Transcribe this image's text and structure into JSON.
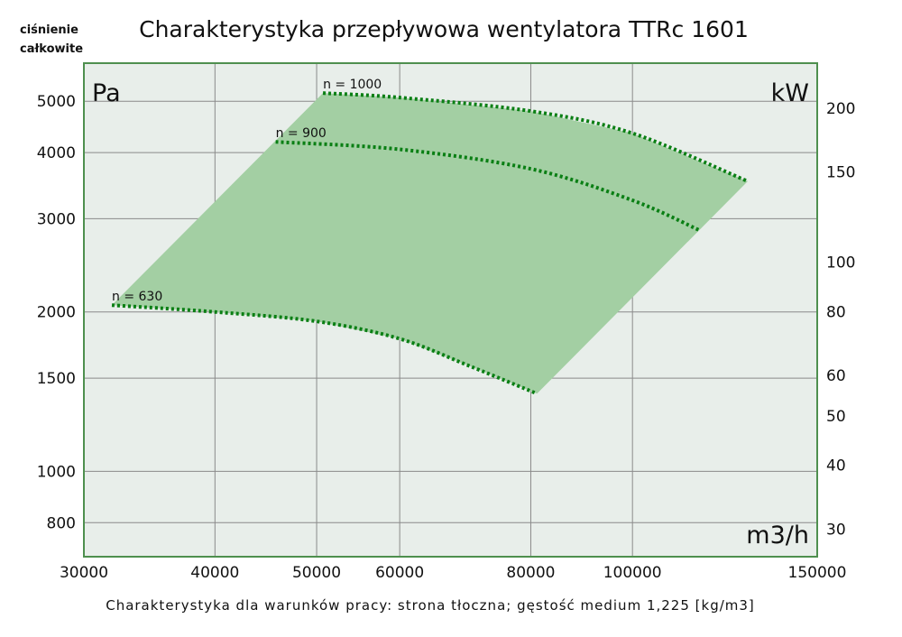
{
  "chart_data": {
    "type": "line",
    "title": "Charakterystyka przepływowa wentylatora TTRc 1601",
    "ylabel_lines": [
      "ciśnienie",
      "całkowite"
    ],
    "y_unit": "Pa",
    "y2_unit": "kW",
    "x_unit": "m3/h",
    "footer": "Charakterystyka dla warunków pracy: strona tłoczna; gęstość medium 1,225 [kg/m3]",
    "x_scale": "log",
    "y_scale": "log",
    "xlim": [
      30000,
      150000
    ],
    "ylim": [
      690,
      5900
    ],
    "y2lim": [
      26.5,
      245
    ],
    "x_ticks": [
      30000,
      40000,
      50000,
      60000,
      80000,
      100000,
      150000
    ],
    "x_tick_labels": [
      "30000",
      "40000",
      "50000",
      "60000",
      "80000",
      "100000",
      "150000"
    ],
    "y_ticks": [
      5000,
      4000,
      3000,
      2000,
      1500,
      1000,
      800
    ],
    "y_tick_labels": [
      "5000",
      "4000",
      "3000",
      "2000",
      "1500",
      "1000",
      "800"
    ],
    "y2_ticks": [
      200,
      150,
      100,
      80,
      60,
      50,
      40,
      30
    ],
    "y2_tick_labels": [
      "200",
      "150",
      "100",
      "80",
      "60",
      "50",
      "40",
      "30"
    ],
    "grid": true,
    "series": [
      {
        "name": "n = 1000",
        "x": [
          50700,
          60000,
          80000,
          100000,
          128800
        ],
        "y": [
          5180,
          5080,
          4790,
          4350,
          3530
        ]
      },
      {
        "name": "n = 900",
        "x": [
          45700,
          60000,
          80000,
          100000,
          115800
        ],
        "y": [
          4190,
          4056,
          3726,
          3250,
          2854
        ]
      },
      {
        "name": "n = 630",
        "x": [
          31900,
          40000,
          50000,
          60000,
          70000,
          81100
        ],
        "y": [
          2060,
          2000,
          1920,
          1780,
          1580,
          1402
        ]
      }
    ],
    "colors": {
      "fill": "#a3cfa3",
      "curve": "#0a7f14",
      "border": "#4e8f4e",
      "plot_bg": "#e8eeea",
      "grid": "#8a8a8a"
    }
  }
}
